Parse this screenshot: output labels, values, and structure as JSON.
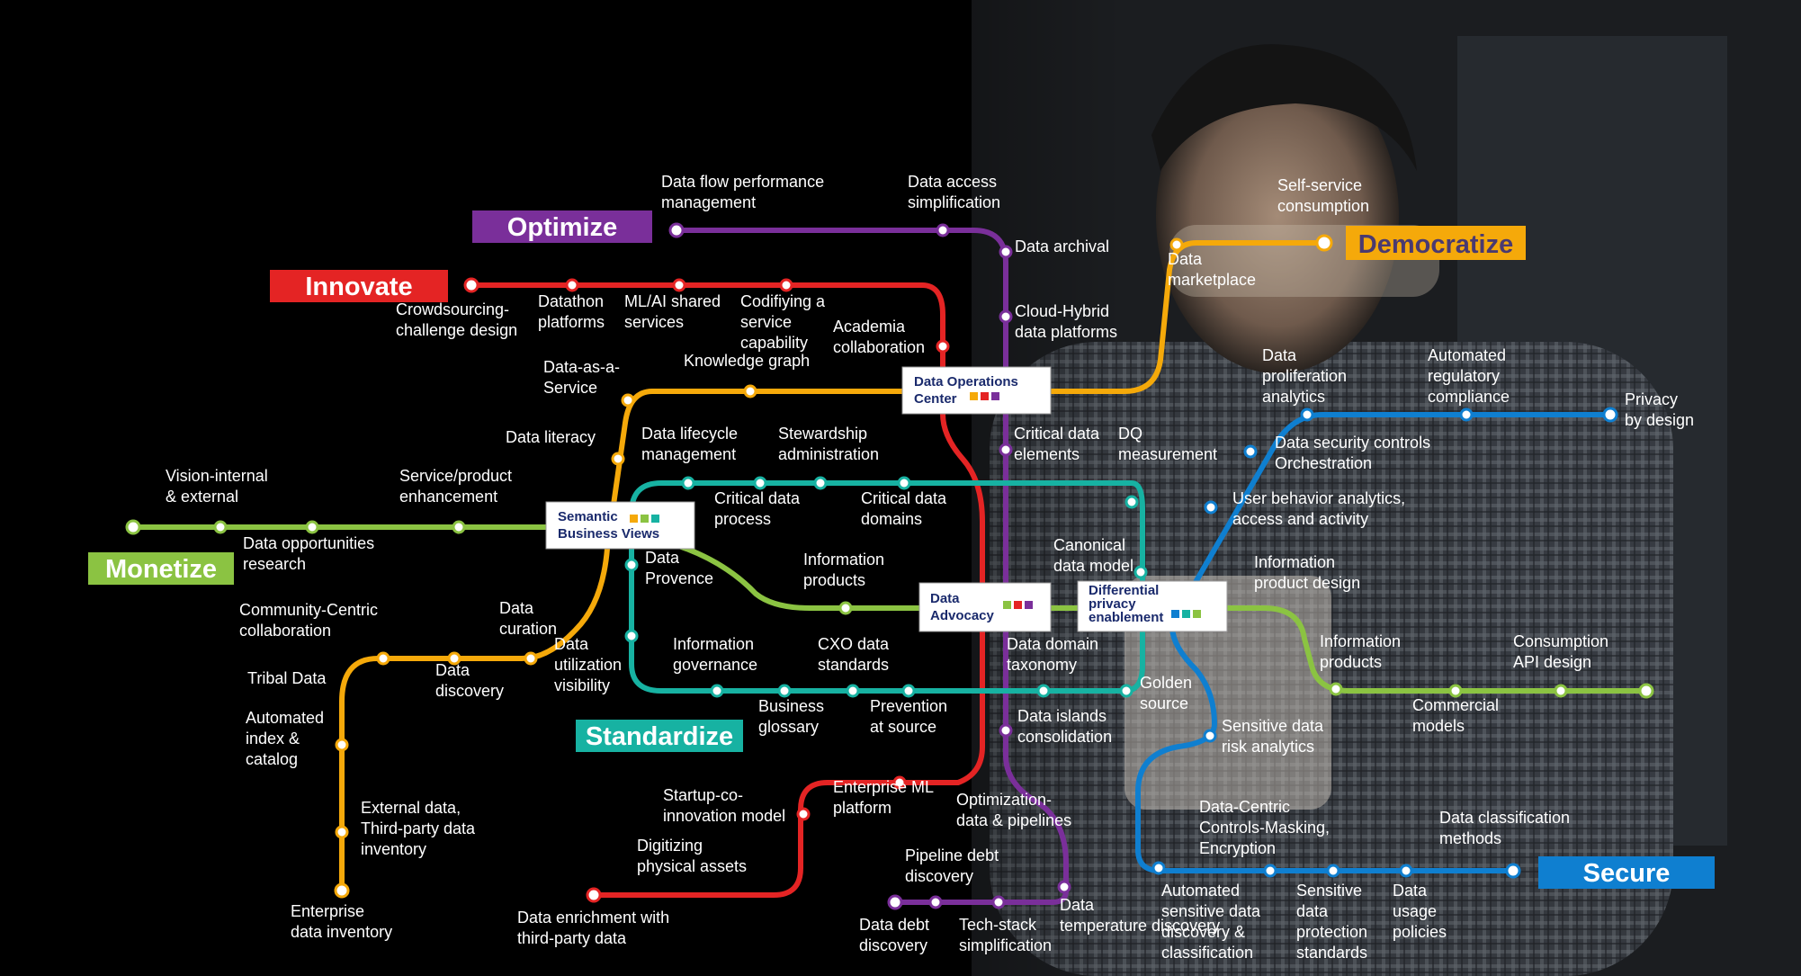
{
  "colors": {
    "optimize": "#7a2f9a",
    "innovate": "#e42424",
    "democratize": "#f5a90a",
    "monetize": "#8bc342",
    "standardize": "#17b2a2",
    "secure": "#0f7fd0",
    "text": "#ffffff",
    "background": "#000000"
  },
  "title_labels": {
    "optimize": "Optimize",
    "innovate": "Innovate",
    "democratize": "Democratize",
    "monetize": "Monetize",
    "standardize": "Standardize",
    "secure": "Secure"
  },
  "hubs": {
    "data_operations_center": "Data Operations Center",
    "semantic_business_views": "Semantic Business Views",
    "data_advocacy": "Data Advocacy",
    "differential_privacy": "Differential privacy enablement"
  },
  "stations": {
    "optimize": [
      "Data flow performance management",
      "Data access simplification",
      "Data archival",
      "Cloud-Hybrid data platforms",
      "Critical data elements",
      "Data domain taxonomy",
      "Data islands consolidation",
      "Optimization-data & pipelines",
      "Data temperature discovery",
      "Tech-stack simplification",
      "Pipeline debt discovery",
      "Data debt discovery"
    ],
    "innovate": [
      "Crowdsourcing-challenge design",
      "Datathon platforms",
      "ML/AI shared services",
      "Codifiying a service capability",
      "Academia collaboration",
      "Enterprise ML platform",
      "Startup-co-innovation model",
      "Digitizing physical assets",
      "Data enrichment with third-party data"
    ],
    "democratize": [
      "Self-service consumption",
      "Data marketplace",
      "Knowledge graph",
      "Data-as-a-Service",
      "Data literacy",
      "Data curation",
      "Data discovery",
      "Community-Centric collaboration",
      "Tribal Data",
      "Automated index & catalog",
      "External data, Third-party data inventory",
      "Enterprise data inventory"
    ],
    "monetize": [
      "Vision-internal & external",
      "Data opportunities research",
      "Service/product enhancement",
      "Information products",
      "Information product design",
      "Information products",
      "Commercial models",
      "Consumption API design"
    ],
    "standardize": [
      "Data lifecycle management",
      "Critical data process",
      "Stewardship administration",
      "Critical data domains",
      "DQ measurement",
      "Canonical data model",
      "Golden source",
      "Prevention at source",
      "CXO data standards",
      "Business glossary",
      "Information governance",
      "Data utilization visibility",
      "Data Provence"
    ],
    "secure": [
      "Privacy by design",
      "Automated regulatory compliance",
      "Data proliferation analytics",
      "Data security controls Orchestration",
      "User behavior analytics, access and activity",
      "Sensitive data risk analytics",
      "Data-Centric Controls-Masking, Encryption",
      "Automated sensitive data discovery & classification",
      "Sensitive data protection standards",
      "Data usage policies",
      "Data classification methods"
    ]
  }
}
